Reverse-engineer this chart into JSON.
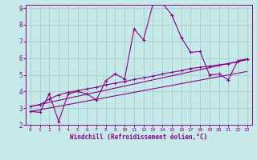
{
  "xlabel": "Windchill (Refroidissement éolien,°C)",
  "bg_color": "#c5e8e8",
  "line_color": "#880088",
  "grid_color": "#b0d8d8",
  "xlim": [
    -0.5,
    23.5
  ],
  "ylim": [
    2,
    9.2
  ],
  "xticks": [
    0,
    1,
    2,
    3,
    4,
    5,
    6,
    7,
    8,
    9,
    10,
    11,
    12,
    13,
    14,
    15,
    16,
    17,
    18,
    19,
    20,
    21,
    22,
    23
  ],
  "yticks": [
    2,
    3,
    4,
    5,
    6,
    7,
    8,
    9
  ],
  "series1_x": [
    0,
    1,
    2,
    3,
    4,
    5,
    6,
    7,
    8,
    9,
    10,
    11,
    12,
    13,
    14,
    15,
    16,
    17,
    18,
    19,
    20,
    21,
    22,
    23
  ],
  "series1_y": [
    2.8,
    2.75,
    3.85,
    2.2,
    3.85,
    4.0,
    3.85,
    3.5,
    4.65,
    5.05,
    4.75,
    7.75,
    7.1,
    9.25,
    9.3,
    8.6,
    7.25,
    6.35,
    6.4,
    5.0,
    5.05,
    4.7,
    5.85,
    5.95
  ],
  "series2_x": [
    0,
    1,
    2,
    3,
    4,
    5,
    6,
    7,
    8,
    9,
    10,
    11,
    12,
    13,
    14,
    15,
    16,
    17,
    18,
    19,
    20,
    21,
    22,
    23
  ],
  "series2_y": [
    3.1,
    3.2,
    3.55,
    3.8,
    3.95,
    4.05,
    4.15,
    4.25,
    4.4,
    4.5,
    4.6,
    4.72,
    4.82,
    4.92,
    5.05,
    5.15,
    5.25,
    5.38,
    5.45,
    5.52,
    5.6,
    5.67,
    5.78,
    5.92
  ],
  "series3_x": [
    0,
    23
  ],
  "series3_y": [
    3.1,
    5.92
  ],
  "series4_x": [
    0,
    23
  ],
  "series4_y": [
    2.8,
    5.2
  ]
}
